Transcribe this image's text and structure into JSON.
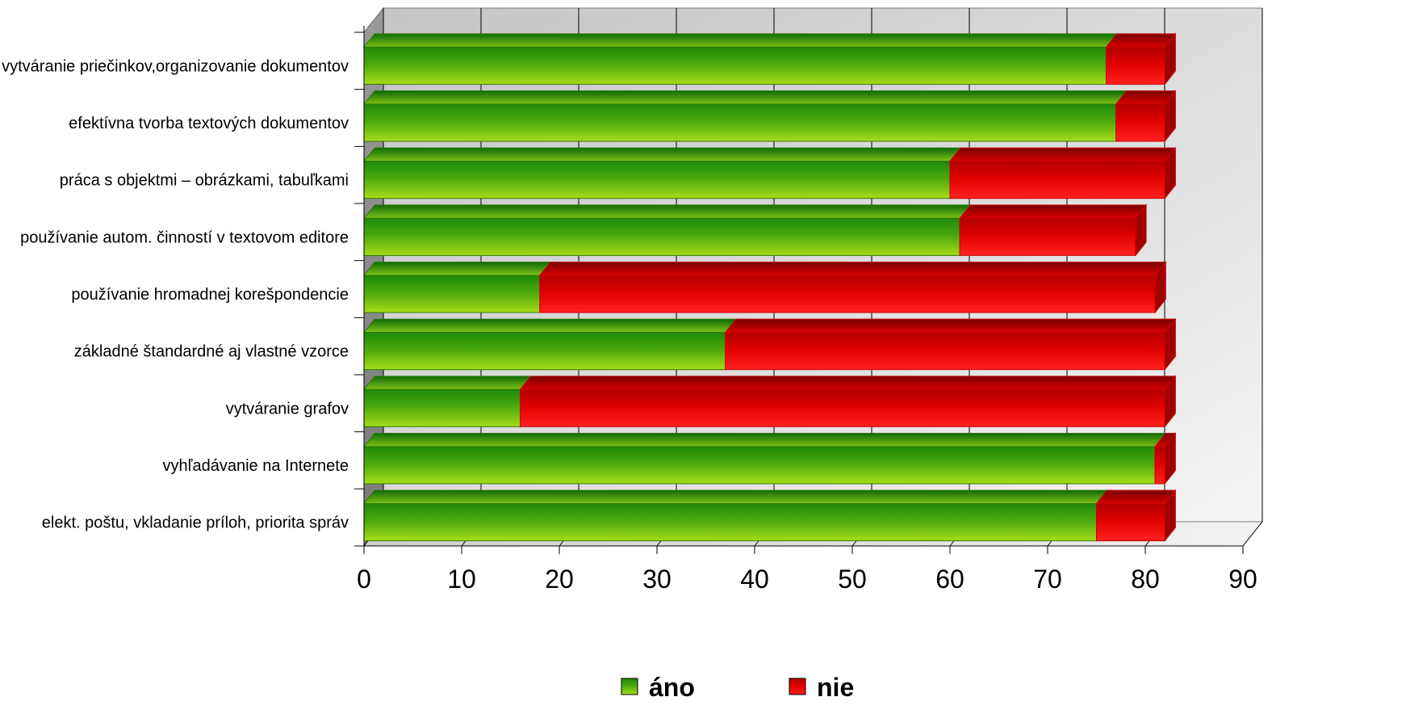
{
  "chart_data": {
    "type": "bar",
    "orientation": "horizontal",
    "stacked": true,
    "three_d": true,
    "categories": [
      "vytváranie priečinkov,organizovanie dokumentov",
      "efektívna tvorba textových dokumentov",
      "práca s objektmi – obrázkami, tabuľkami",
      "používanie autom. činností v textovom editore",
      "používanie hromadnej korešpondencie",
      "základné štandardné aj vlastné vzorce",
      "vytváranie grafov",
      "vyhľadávanie na Internete",
      "elekt. poštu, vkladanie príloh, priorita správ"
    ],
    "series": [
      {
        "name": "áno",
        "color": "#5fb000",
        "values": [
          76,
          77,
          60,
          61,
          18,
          37,
          16,
          81,
          75
        ]
      },
      {
        "name": "nie",
        "color": "#ff0000",
        "values": [
          6,
          5,
          22,
          18,
          63,
          45,
          66,
          1,
          7
        ]
      }
    ],
    "xlim": [
      0,
      90
    ],
    "xticks": [
      "0",
      "10",
      "20",
      "30",
      "40",
      "50",
      "60",
      "70",
      "80",
      "90"
    ],
    "grid": true,
    "legend": "bottom",
    "title": "",
    "xlabel": "",
    "ylabel": ""
  }
}
